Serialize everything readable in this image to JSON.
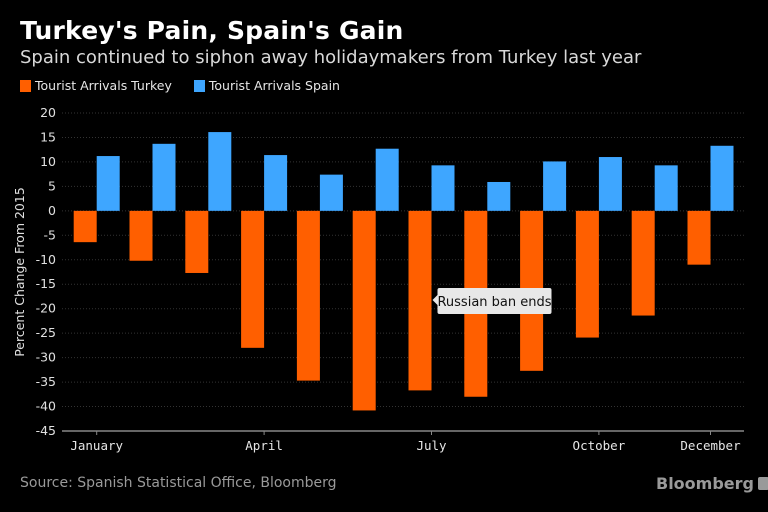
{
  "title": "Turkey's Pain, Spain's Gain",
  "subtitle": "Spain continued to siphon away holidaymakers from Turkey last year",
  "source": "Source: Spanish Statistical Office, Bloomberg",
  "brand": "Bloomberg",
  "chart_data": {
    "type": "bar",
    "title": "Turkey's Pain, Spain's Gain",
    "subtitle": "Spain continued to siphon away holidaymakers from Turkey last year",
    "xlabel": "",
    "ylabel": "Percent Change From 2015",
    "ylim": [
      -45,
      20
    ],
    "yticks": [
      20,
      15,
      10,
      5,
      0,
      -5,
      -10,
      -15,
      -20,
      -25,
      -30,
      -35,
      -40,
      -45
    ],
    "grid": true,
    "legend_position": "top-left",
    "categories": [
      "January",
      "February",
      "March",
      "April",
      "May",
      "June",
      "July",
      "August",
      "September",
      "October",
      "November",
      "December"
    ],
    "xtick_labels": [
      {
        "index": 0,
        "label": "January"
      },
      {
        "index": 3,
        "label": "April"
      },
      {
        "index": 6,
        "label": "July"
      },
      {
        "index": 9,
        "label": "October"
      },
      {
        "index": 11,
        "label": "December"
      }
    ],
    "series": [
      {
        "name": "Tourist Arrivals Turkey",
        "color": "#ff5f00",
        "values": [
          -6.4,
          -10.2,
          -12.7,
          -28.0,
          -34.7,
          -40.8,
          -36.7,
          -38.0,
          -32.7,
          -25.9,
          -21.4,
          -11.0
        ]
      },
      {
        "name": "Tourist Arrivals Spain",
        "color": "#3ea6ff",
        "values": [
          11.2,
          13.7,
          16.1,
          11.4,
          7.4,
          12.7,
          9.3,
          5.9,
          10.1,
          11.0,
          9.3,
          13.3
        ]
      }
    ],
    "annotations": [
      {
        "text": "Russian ban ends",
        "category": "July"
      }
    ]
  }
}
